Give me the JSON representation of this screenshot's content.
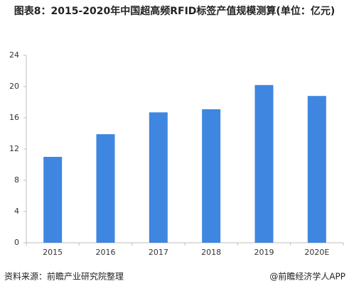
{
  "chart_data": {
    "type": "bar",
    "title": "图表8：2015-2020年中国超高频RFID标签产值规模测算(单位：亿元)",
    "categories": [
      "2015",
      "2016",
      "2017",
      "2018",
      "2019",
      "2020E"
    ],
    "values": [
      11.0,
      13.9,
      16.7,
      17.1,
      20.2,
      18.8
    ],
    "color": "#3f86e0",
    "ylim": [
      0,
      24
    ],
    "yticks": [
      0,
      4,
      8,
      12,
      16,
      20,
      24
    ],
    "grid": false,
    "source": "资料来源：前瞻产业研究院整理",
    "credit": "@前瞻经济学人APP"
  }
}
